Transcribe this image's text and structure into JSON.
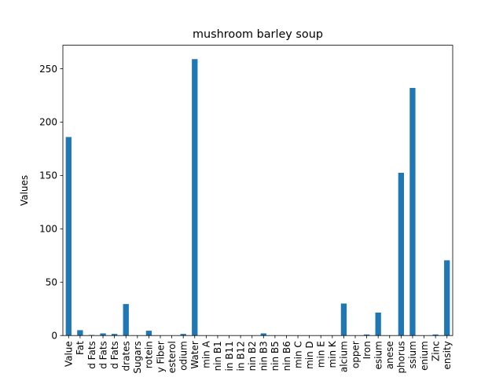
{
  "chart_data": {
    "type": "bar",
    "title": "mushroom barley soup",
    "xlabel": "",
    "ylabel": "Values",
    "ylim": [
      0,
      272
    ],
    "yticks": [
      0,
      50,
      100,
      150,
      200,
      250
    ],
    "grid": false,
    "legend": "none",
    "bar_color": "#1f77b4",
    "categories": [
      "Value",
      "Fat",
      "d Fats",
      "d Fats",
      "d Fats",
      "drates",
      "Sugars",
      "rotein",
      "y Fiber",
      "esterol",
      "odium",
      "Water",
      "min A",
      "nin B1",
      "in B11",
      "in B12",
      "nin B2",
      "nin B3",
      "nin B5",
      "nin B6",
      "min C",
      "min D",
      "min E",
      "min K",
      "alcium",
      "opper",
      "Iron",
      "esium",
      "anese",
      "phorus",
      "ssium",
      "enium",
      "Zinc",
      "ensity"
    ],
    "values": [
      186,
      5,
      0.5,
      2,
      1.5,
      29.5,
      0,
      4.5,
      0,
      0,
      1.5,
      259,
      0,
      0,
      0,
      0,
      0,
      2,
      0,
      0,
      0,
      0,
      0,
      0,
      30,
      0,
      1,
      21.5,
      0,
      152.5,
      232,
      0,
      1,
      70.5
    ]
  }
}
